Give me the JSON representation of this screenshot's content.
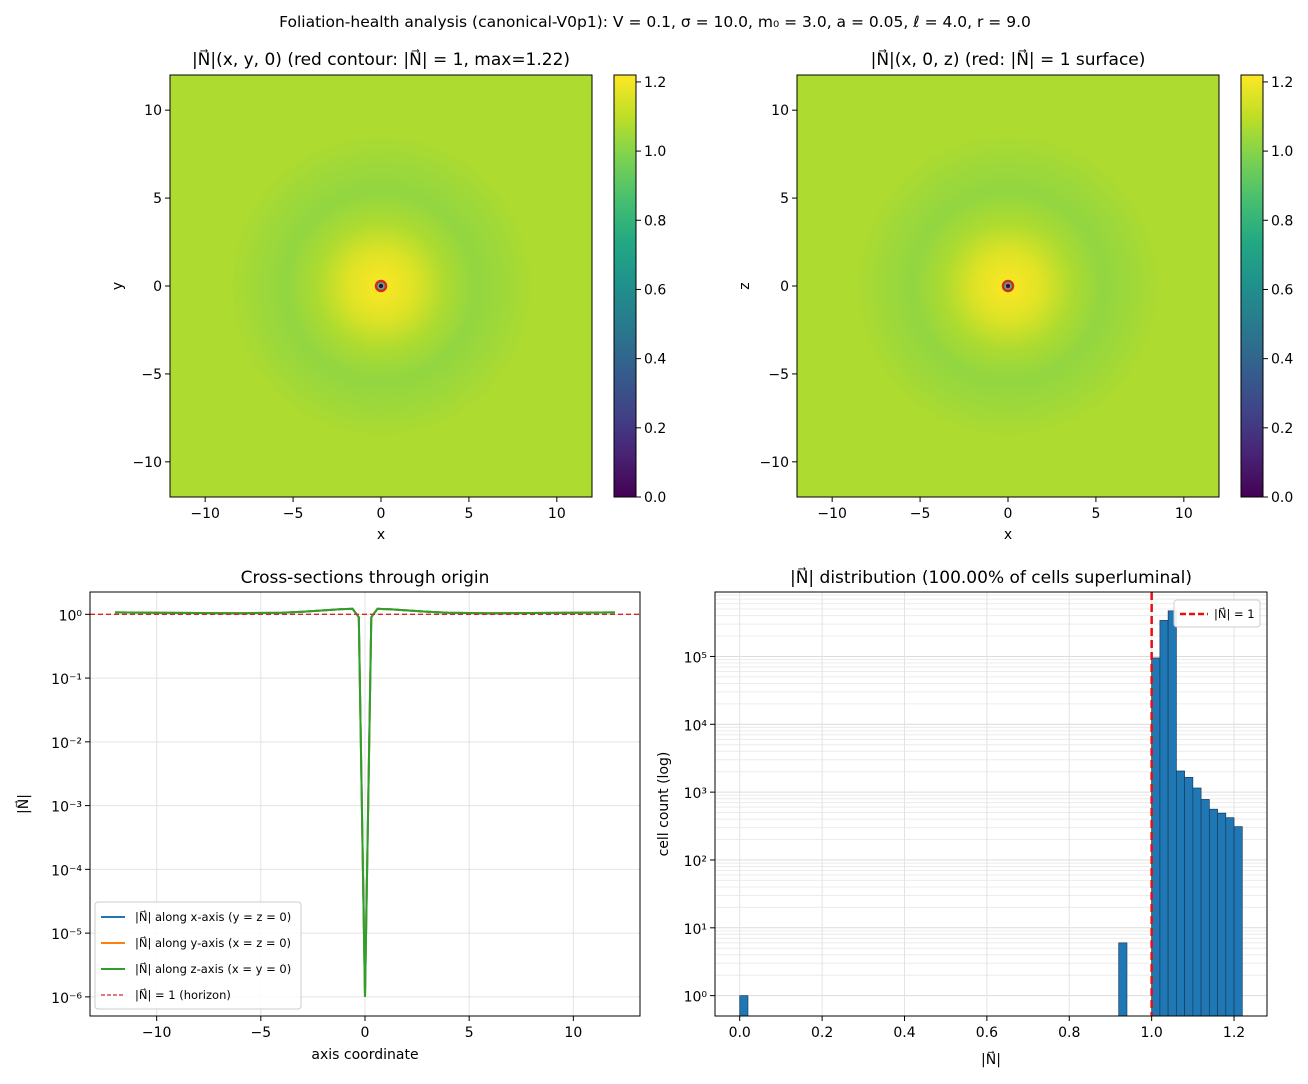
{
  "figure": {
    "suptitle": "Foliation-health analysis (canonical-V0p1): V = 0.1, σ = 10.0, m₀ = 3.0, a = 0.05, ℓ = 4.0, r = 9.0"
  },
  "colors": {
    "blue": "#1f77b4",
    "orange": "#ff7f0e",
    "green": "#2ca02c",
    "red": "#d62728",
    "hist_edge": "#1b3a5c",
    "grid": "#e3e3e3"
  },
  "chart_data": [
    {
      "type": "heatmap",
      "title": "|N⃗|(x, y, 0)  (red contour: |N⃗| = 1,  max=1.22)",
      "xlabel": "x",
      "ylabel": "y",
      "xlim": [
        -12,
        12
      ],
      "ylim": [
        -12,
        12
      ],
      "xticks": [
        -10,
        -5,
        0,
        5,
        10
      ],
      "yticks": [
        -10,
        -5,
        0,
        5,
        10
      ],
      "colormap": "viridis",
      "value_range": [
        0.0,
        1.22
      ],
      "colorbar_ticks": [
        "0.0",
        "0.2",
        "0.4",
        "0.6",
        "0.8",
        "1.0",
        "1.2"
      ],
      "field": {
        "background": 1.07,
        "ring_min": 1.02,
        "peak": 1.22,
        "center": 0.0
      },
      "contour_level": 1.0
    },
    {
      "type": "heatmap",
      "title": "|N⃗|(x, 0, z) (red: |N⃗| = 1 surface)",
      "xlabel": "x",
      "ylabel": "z",
      "xlim": [
        -12,
        12
      ],
      "ylim": [
        -12,
        12
      ],
      "xticks": [
        -10,
        -5,
        0,
        5,
        10
      ],
      "yticks": [
        -10,
        -5,
        0,
        5,
        10
      ],
      "colormap": "viridis",
      "value_range": [
        0.0,
        1.22
      ],
      "colorbar_ticks": [
        "0.0",
        "0.2",
        "0.4",
        "0.6",
        "0.8",
        "1.0",
        "1.2"
      ],
      "field": {
        "background": 1.07,
        "ring_min": 1.02,
        "peak": 1.22,
        "center": 0.0
      },
      "contour_level": 1.0
    },
    {
      "type": "line",
      "title": "Cross-sections through origin",
      "xlabel": "axis coordinate",
      "ylabel": "|N⃗|",
      "yscale": "log",
      "xlim": [
        -13.2,
        13.2
      ],
      "ylim_exp": [
        -6.3,
        0.35
      ],
      "xticks": [
        -10,
        -5,
        0,
        5,
        10
      ],
      "yticks_exp": [
        0,
        -1,
        -2,
        -3,
        -4,
        -5,
        -6
      ],
      "x": [
        -12,
        -10,
        -8,
        -6,
        -4,
        -3,
        -2,
        -1.2,
        -0.6,
        -0.3,
        0,
        0.3,
        0.6,
        1.2,
        2,
        3,
        4,
        6,
        8,
        10,
        12
      ],
      "series": [
        {
          "name": "|N⃗| along x-axis (y = z = 0)",
          "color": "#1f77b4",
          "values": [
            1.07,
            1.06,
            1.05,
            1.04,
            1.06,
            1.1,
            1.15,
            1.2,
            1.22,
            0.9,
            1e-06,
            0.9,
            1.22,
            1.2,
            1.15,
            1.1,
            1.06,
            1.04,
            1.05,
            1.06,
            1.07
          ]
        },
        {
          "name": "|N⃗| along y-axis (x = z = 0)",
          "color": "#ff7f0e",
          "values": [
            1.07,
            1.06,
            1.05,
            1.04,
            1.06,
            1.1,
            1.15,
            1.2,
            1.22,
            0.9,
            1e-06,
            0.9,
            1.22,
            1.2,
            1.15,
            1.1,
            1.06,
            1.04,
            1.05,
            1.06,
            1.07
          ]
        },
        {
          "name": "|N⃗| along z-axis (x = y = 0)",
          "color": "#2ca02c",
          "values": [
            1.07,
            1.06,
            1.05,
            1.04,
            1.06,
            1.1,
            1.15,
            1.2,
            1.22,
            0.9,
            1e-06,
            0.9,
            1.22,
            1.2,
            1.15,
            1.1,
            1.06,
            1.04,
            1.05,
            1.06,
            1.07
          ]
        }
      ],
      "hline": {
        "value": 1,
        "label": "|N⃗| = 1 (horizon)",
        "color": "#d62728"
      }
    },
    {
      "type": "bar",
      "title": "|N⃗| distribution (100.00% of cells superluminal)",
      "xlabel": "|N⃗|",
      "ylabel": "cell count (log)",
      "yscale": "log",
      "xlim": [
        -0.06,
        1.28
      ],
      "ylim_exp": [
        -0.3,
        5.95
      ],
      "xticks": [
        0.0,
        0.2,
        0.4,
        0.6,
        0.8,
        1.0,
        1.2
      ],
      "yticks_exp": [
        0,
        1,
        2,
        3,
        4,
        5
      ],
      "bin_width": 0.02,
      "bins": [
        {
          "x": 0.0,
          "count": 1
        },
        {
          "x": 0.92,
          "count": 6
        },
        {
          "x": 1.0,
          "count": 95000
        },
        {
          "x": 1.02,
          "count": 340000
        },
        {
          "x": 1.04,
          "count": 470000
        },
        {
          "x": 1.06,
          "count": 2050
        },
        {
          "x": 1.08,
          "count": 1650
        },
        {
          "x": 1.1,
          "count": 1150
        },
        {
          "x": 1.12,
          "count": 780
        },
        {
          "x": 1.14,
          "count": 560
        },
        {
          "x": 1.16,
          "count": 490
        },
        {
          "x": 1.18,
          "count": 420
        },
        {
          "x": 1.2,
          "count": 310
        }
      ],
      "vline": {
        "value": 1.0,
        "label": "|N⃗| = 1",
        "color": "#e8100c"
      }
    }
  ]
}
